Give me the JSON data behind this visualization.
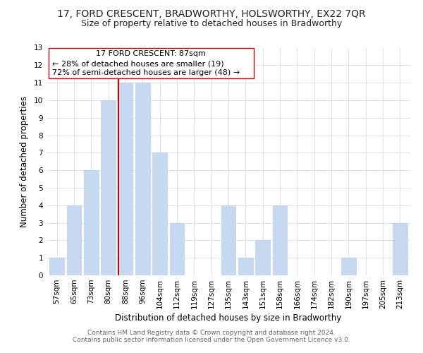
{
  "title": "17, FORD CRESCENT, BRADWORTHY, HOLSWORTHY, EX22 7QR",
  "subtitle": "Size of property relative to detached houses in Bradworthy",
  "xlabel": "Distribution of detached houses by size in Bradworthy",
  "ylabel": "Number of detached properties",
  "categories": [
    "57sqm",
    "65sqm",
    "73sqm",
    "80sqm",
    "88sqm",
    "96sqm",
    "104sqm",
    "112sqm",
    "119sqm",
    "127sqm",
    "135sqm",
    "143sqm",
    "151sqm",
    "158sqm",
    "166sqm",
    "174sqm",
    "182sqm",
    "190sqm",
    "197sqm",
    "205sqm",
    "213sqm"
  ],
  "values": [
    1,
    4,
    6,
    10,
    11,
    11,
    7,
    3,
    0,
    0,
    4,
    1,
    2,
    4,
    0,
    0,
    0,
    1,
    0,
    0,
    3
  ],
  "bar_color": "#c6d9f0",
  "vline_color": "#cc0000",
  "ylim": [
    0,
    13
  ],
  "yticks": [
    0,
    1,
    2,
    3,
    4,
    5,
    6,
    7,
    8,
    9,
    10,
    11,
    12,
    13
  ],
  "annotation_title": "17 FORD CRESCENT: 87sqm",
  "annotation_line1": "← 28% of detached houses are smaller (19)",
  "annotation_line2": "72% of semi-detached houses are larger (48) →",
  "annotation_box_color": "#ffffff",
  "annotation_box_edge": "#cc0000",
  "footer1": "Contains HM Land Registry data © Crown copyright and database right 2024.",
  "footer2": "Contains public sector information licensed under the Open Government Licence v3.0.",
  "title_fontsize": 10,
  "subtitle_fontsize": 9,
  "axis_label_fontsize": 8.5,
  "tick_fontsize": 7.5,
  "annotation_fontsize": 8,
  "footer_fontsize": 6.5,
  "grid_color": "#d4e2f0",
  "background_color": "#ffffff",
  "vline_bar_index": 4
}
